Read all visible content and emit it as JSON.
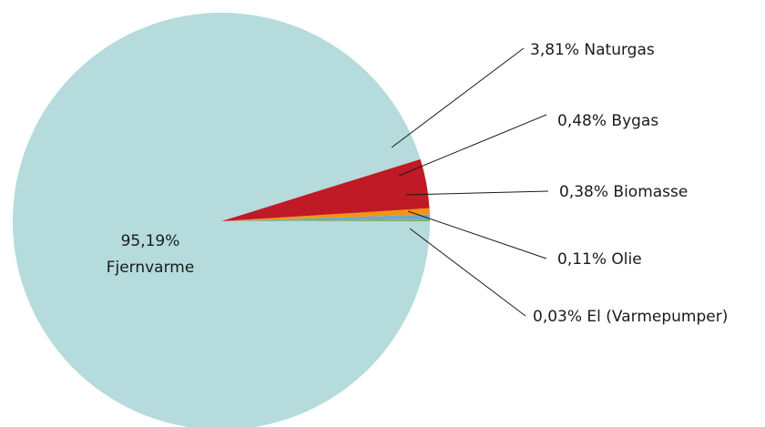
{
  "chart_data": {
    "type": "pie",
    "title": "",
    "slices": [
      {
        "percent_label": "95,19%",
        "name": "Fjernvarme",
        "value": 95.19,
        "color": "#b5dbdc"
      },
      {
        "percent_label": "0,03%",
        "name": "El (Varmepumper)",
        "value": 0.03,
        "color": "#0f3a55"
      },
      {
        "percent_label": "0,11%",
        "name": "Olie",
        "value": 0.11,
        "color": "#8cc152"
      },
      {
        "percent_label": "0,38%",
        "name": "Biomasse",
        "value": 0.38,
        "color": "#70a8c6"
      },
      {
        "percent_label": "0,48%",
        "name": "Bygas",
        "value": 0.48,
        "color": "#f39512"
      },
      {
        "percent_label": "3,81%",
        "name": "Naturgas",
        "value": 3.81,
        "color": "#bf1a26"
      }
    ]
  }
}
